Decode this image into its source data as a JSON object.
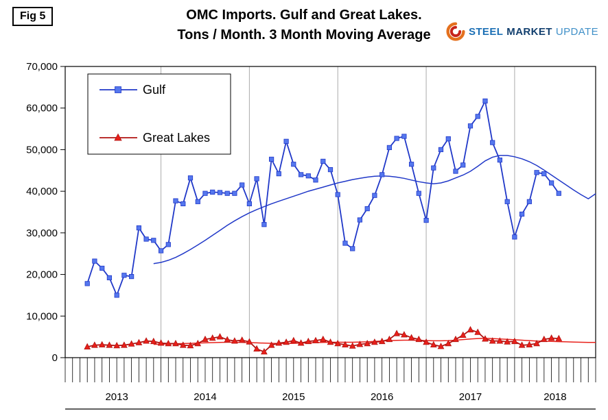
{
  "fig_label": "Fig 5",
  "title_line1": "OMC Imports. Gulf and Great Lakes.",
  "title_line2": "Tons / Month. 3 Month Moving Average",
  "logo": {
    "word1": "STEEL",
    "word2": "MARKET",
    "word3": "UPDATE"
  },
  "chart_data": {
    "type": "line",
    "title": "OMC Imports. Gulf and Great Lakes. Tons / Month. 3 Month Moving Average",
    "ylim": [
      0,
      70000
    ],
    "xlabel": "",
    "ylabel": "",
    "grid": "vertical-year-lines-only",
    "legend_position": "top-left-inside",
    "x_domain_months": 72,
    "first_marker_month": 3,
    "gridline_months": [
      13,
      25,
      37,
      49,
      61
    ],
    "year_label_months": [
      7,
      19,
      31,
      43,
      55,
      66.5
    ],
    "x_year_labels": [
      "2013",
      "2014",
      "2015",
      "2016",
      "2017",
      "2018"
    ],
    "y_ticks": [
      {
        "value": 0,
        "label": "0"
      },
      {
        "value": 10000,
        "label": "10,000"
      },
      {
        "value": 20000,
        "label": "20,000"
      },
      {
        "value": 30000,
        "label": "30,000"
      },
      {
        "value": 40000,
        "label": "40,000"
      },
      {
        "value": 50000,
        "label": "50,000"
      },
      {
        "value": 60000,
        "label": "60,000"
      },
      {
        "value": 70000,
        "label": "70,000"
      }
    ],
    "colors": {
      "gulf": "#2038C8",
      "great_lakes": "#D81814",
      "gridline": "#ABABAB",
      "axis": "#000000"
    },
    "series": [
      {
        "name": "Gulf",
        "marker": "square",
        "color": "#2038C8",
        "marker_fill": "#5577EE",
        "values": [
          17800,
          23200,
          21500,
          19200,
          15000,
          19800,
          19500,
          31200,
          28500,
          28200,
          25700,
          27200,
          37700,
          37000,
          43200,
          37500,
          39500,
          39800,
          39700,
          39500,
          39500,
          41500,
          37000,
          43000,
          32000,
          47700,
          44200,
          52000,
          46500,
          44000,
          43700,
          42700,
          47200,
          45200,
          39200,
          27500,
          26200,
          33100,
          35800,
          39000,
          44000,
          50500,
          52700,
          53200,
          46500,
          39500,
          33000,
          45600,
          50000,
          52600,
          44800,
          46300,
          55700,
          58000,
          61700,
          51700,
          47500,
          37500,
          29000,
          34500,
          37500,
          44500,
          44200,
          42000,
          39500
        ]
      },
      {
        "name": "Great Lakes",
        "marker": "triangle",
        "color": "#B01210",
        "marker_fill": "#E8201A",
        "values": [
          2600,
          3000,
          3100,
          3000,
          2900,
          3000,
          3300,
          3600,
          4000,
          3900,
          3500,
          3400,
          3400,
          3000,
          2900,
          3400,
          4400,
          4700,
          5000,
          4300,
          4000,
          4200,
          3800,
          2100,
          1400,
          3000,
          3500,
          3700,
          4100,
          3500,
          3900,
          4100,
          4400,
          3700,
          3400,
          3100,
          2800,
          3200,
          3400,
          3700,
          3900,
          4400,
          5800,
          5500,
          4800,
          4400,
          3700,
          3100,
          2700,
          3400,
          4400,
          5400,
          6700,
          6100,
          4500,
          4000,
          4000,
          3800,
          3900,
          3000,
          3100,
          3400,
          4400,
          4700,
          4600
        ]
      }
    ],
    "trends": [
      {
        "series": "Gulf",
        "color": "#2038C8",
        "start_month": 12,
        "values": [
          22600,
          22900,
          23400,
          24100,
          25000,
          26000,
          27100,
          28200,
          29400,
          30600,
          31800,
          32900,
          33900,
          34800,
          35600,
          36300,
          37000,
          37600,
          38200,
          38800,
          39400,
          40000,
          40500,
          41000,
          41500,
          42000,
          42400,
          42800,
          43100,
          43400,
          43600,
          43700,
          43600,
          43400,
          43100,
          42700,
          42300,
          42000,
          41800,
          42000,
          42500,
          43200,
          43900,
          44800,
          46000,
          47300,
          48200,
          48600,
          48600,
          48300,
          47800,
          47100,
          46200,
          45100,
          43900,
          42700,
          41500,
          40300,
          39200,
          38200,
          39400
        ]
      },
      {
        "series": "Great Lakes",
        "color": "#E8201A",
        "start_month": 12,
        "values": [
          3200,
          3250,
          3300,
          3350,
          3400,
          3450,
          3500,
          3550,
          3600,
          3650,
          3700,
          3700,
          3650,
          3600,
          3550,
          3500,
          3450,
          3400,
          3400,
          3450,
          3500,
          3550,
          3600,
          3650,
          3700,
          3700,
          3700,
          3700,
          3750,
          3800,
          3900,
          4000,
          4100,
          4150,
          4200,
          4200,
          4150,
          4100,
          4050,
          4050,
          4100,
          4200,
          4350,
          4500,
          4600,
          4650,
          4600,
          4500,
          4400,
          4300,
          4200,
          4100,
          4000,
          3950,
          3900,
          3850,
          3800,
          3750,
          3700,
          3650,
          3650
        ]
      }
    ]
  }
}
